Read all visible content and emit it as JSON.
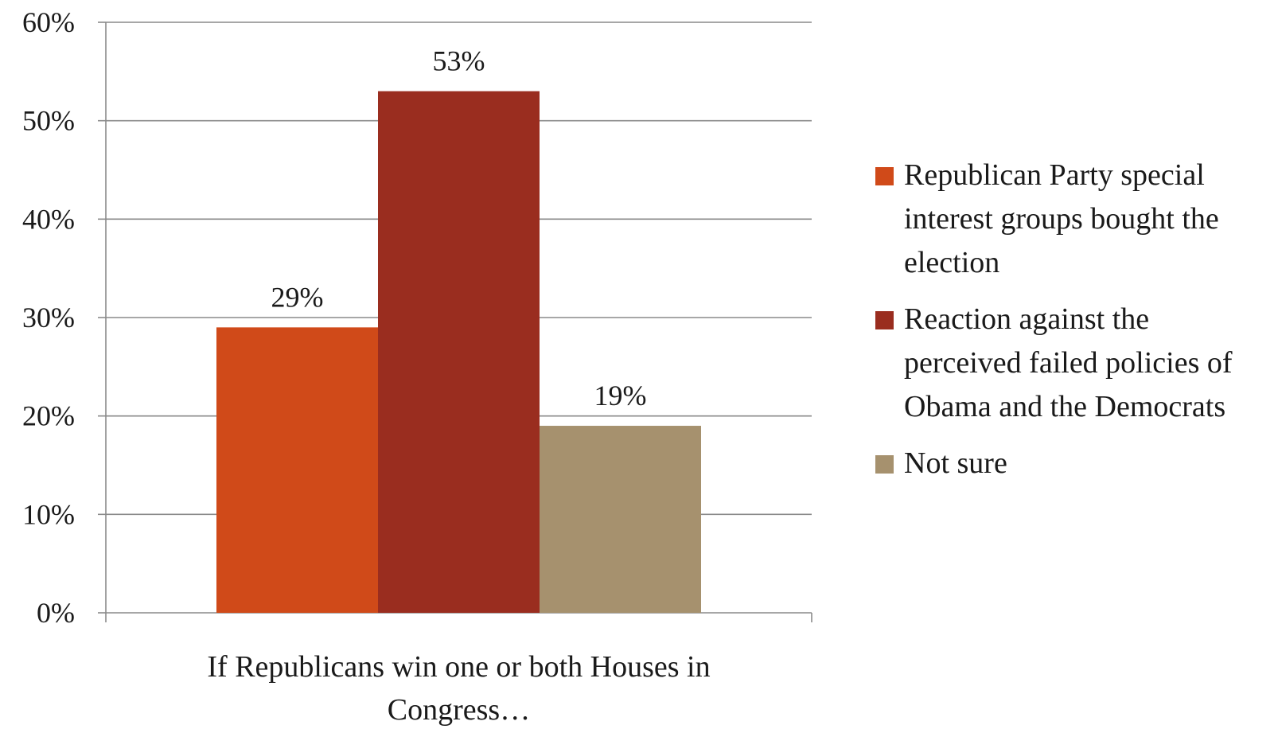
{
  "chart_data": {
    "type": "bar",
    "categories": [
      "If Republicans win one or both Houses in Congress…"
    ],
    "category_label_lines": [
      "If Republicans win one or both Houses in",
      "Congress…"
    ],
    "series": [
      {
        "name": "Republican Party special interest groups bought the election",
        "values": [
          29
        ],
        "color": "#d04a19",
        "data_label": "29%",
        "legend_lines": [
          "Republican Party special",
          "interest groups bought the",
          "election"
        ]
      },
      {
        "name": "Reaction against the perceived failed policies of Obama and the Democrats",
        "values": [
          53
        ],
        "color": "#9a2d1f",
        "data_label": "53%",
        "legend_lines": [
          "Reaction against the",
          "perceived failed policies of",
          "Obama and the Democrats"
        ]
      },
      {
        "name": "Not sure",
        "values": [
          19
        ],
        "color": "#a6916e",
        "data_label": "19%",
        "legend_lines": [
          "Not sure"
        ]
      }
    ],
    "yticks": [
      "0%",
      "10%",
      "20%",
      "30%",
      "40%",
      "50%",
      "60%"
    ],
    "ylim": [
      0,
      60
    ],
    "grid": true,
    "legend_position": "right",
    "title": "",
    "xlabel": "",
    "ylabel": ""
  }
}
